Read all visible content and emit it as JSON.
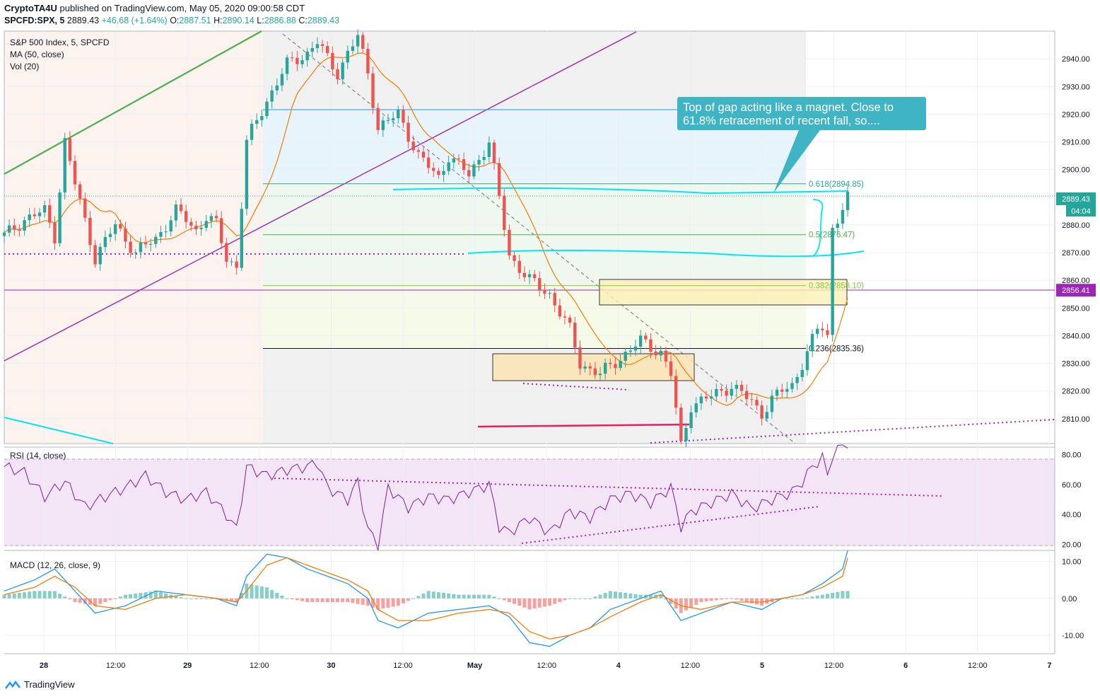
{
  "header": {
    "publisher": "CryptoTA4U",
    "published_text": "published on TradingView.com, May 05, 2020 09:00:58 CDT",
    "symbol": "SPCFD:SPX, 5",
    "last": "2889.43",
    "change": "+46.68 (+1.64%)",
    "o_label": "O:",
    "o": "2887.51",
    "h_label": "H:",
    "h": "2890.14",
    "l_label": "L:",
    "l": "2886.88",
    "c_label": "C:",
    "c": "2889.43"
  },
  "legend": {
    "title": "S&P 500 Index, 5, SPCFD",
    "ma": "MA (50, close)",
    "vol": "Vol (20)",
    "rsi": "RSI (14, close)",
    "macd": "MACD (12, 26, close, 9)"
  },
  "annotation": {
    "callout": "Top of gap acting like a magnet. Close to 61.8% retracement of recent fall, so...."
  },
  "footer": {
    "brand": "TradingView"
  },
  "colors": {
    "up": "#26a69a",
    "down": "#ef5350",
    "ma": "#f57c00",
    "rsi": "#7b1fa2",
    "macd": "#2196f3",
    "signal": "#f57c00",
    "fib_teal": "#26a69a",
    "callout": "#3fb5c4",
    "purple_level": "#9c27b0",
    "cyan": "#00e5ff",
    "magenta": "#e91e63"
  },
  "chart_data": [
    {
      "type": "candlestick",
      "title": "S&P 500 Index, 5, SPCFD",
      "y_axis_ticks": [
        "2940.00",
        "2930.00",
        "2920.00",
        "2910.00",
        "2900.00",
        "2890.00",
        "2880.00",
        "2870.00",
        "2860.00",
        "2850.00",
        "2840.00",
        "2830.00",
        "2820.00",
        "2810.00"
      ],
      "ylim": [
        2801,
        2950
      ],
      "x_axis_ticks": [
        "28",
        "12:00",
        "29",
        "12:00",
        "30",
        "12:00",
        "May",
        "12:00",
        "4",
        "12:00",
        "5",
        "12:00",
        "6",
        "12:00",
        "7"
      ],
      "last_price_label": "2889.43",
      "countdown_label": "04:04",
      "level_label": "2856.41",
      "fib_levels": [
        {
          "label": "0.618(2894.85)",
          "value": 2894.85
        },
        {
          "label": "0.5(2876.47)",
          "value": 2876.47
        },
        {
          "label": "0.382(2858.10)",
          "value": 2858.1
        },
        {
          "label": "0.236(2835.36)",
          "value": 2835.36
        }
      ],
      "price_path": [
        [
          0,
          2876
        ],
        [
          4,
          2882
        ],
        [
          8,
          2885
        ],
        [
          10,
          2876
        ],
        [
          12,
          2910
        ],
        [
          14,
          2895
        ],
        [
          18,
          2868
        ],
        [
          22,
          2880
        ],
        [
          26,
          2870
        ],
        [
          30,
          2875
        ],
        [
          34,
          2885
        ],
        [
          36,
          2882
        ],
        [
          38,
          2878
        ],
        [
          40,
          2883
        ],
        [
          42,
          2880
        ],
        [
          44,
          2868
        ],
        [
          46,
          2865
        ],
        [
          48,
          2910
        ],
        [
          52,
          2925
        ],
        [
          56,
          2938
        ],
        [
          60,
          2942
        ],
        [
          62,
          2946
        ],
        [
          64,
          2940
        ],
        [
          66,
          2935
        ],
        [
          68,
          2942
        ],
        [
          70,
          2948
        ],
        [
          72,
          2935
        ],
        [
          74,
          2915
        ],
        [
          78,
          2920
        ],
        [
          82,
          2905
        ],
        [
          86,
          2897
        ],
        [
          88,
          2905
        ],
        [
          92,
          2898
        ],
        [
          96,
          2910
        ],
        [
          100,
          2869
        ],
        [
          104,
          2860
        ],
        [
          108,
          2855
        ],
        [
          112,
          2842
        ],
        [
          114,
          2830
        ],
        [
          118,
          2826
        ],
        [
          122,
          2832
        ],
        [
          126,
          2838
        ],
        [
          130,
          2834
        ],
        [
          132,
          2826
        ],
        [
          134,
          2800
        ],
        [
          136,
          2815
        ],
        [
          140,
          2818
        ],
        [
          144,
          2822
        ],
        [
          148,
          2816
        ],
        [
          150,
          2812
        ],
        [
          152,
          2817
        ],
        [
          154,
          2820
        ],
        [
          156,
          2822
        ],
        [
          158,
          2830
        ],
        [
          160,
          2838
        ],
        [
          161,
          2842
        ],
        [
          162,
          2843
        ],
        [
          163,
          2840
        ],
        [
          164,
          2879
        ],
        [
          166,
          2886
        ],
        [
          167,
          2889.43
        ]
      ],
      "x_range": [
        0,
        208
      ]
    },
    {
      "type": "line",
      "title": "RSI (14, close)",
      "y_axis_ticks": [
        "80.00",
        "60.00",
        "40.00",
        "20.00"
      ],
      "ylim": [
        16,
        85
      ],
      "series": [
        {
          "values_path": [
            [
              0,
              72
            ],
            [
              4,
              68
            ],
            [
              8,
              52
            ],
            [
              12,
              62
            ],
            [
              16,
              45
            ],
            [
              20,
              52
            ],
            [
              24,
              58
            ],
            [
              28,
              66
            ],
            [
              32,
              55
            ],
            [
              36,
              50
            ],
            [
              40,
              55
            ],
            [
              44,
              40
            ],
            [
              46,
              30
            ],
            [
              48,
              72
            ],
            [
              52,
              66
            ],
            [
              56,
              70
            ],
            [
              60,
              72
            ],
            [
              62,
              75
            ],
            [
              64,
              58
            ],
            [
              68,
              50
            ],
            [
              70,
              62
            ],
            [
              72,
              30
            ],
            [
              74,
              20
            ],
            [
              76,
              58
            ],
            [
              80,
              45
            ],
            [
              84,
              52
            ],
            [
              88,
              50
            ],
            [
              92,
              55
            ],
            [
              96,
              60
            ],
            [
              98,
              32
            ],
            [
              100,
              28
            ],
            [
              104,
              38
            ],
            [
              108,
              28
            ],
            [
              112,
              42
            ],
            [
              116,
              38
            ],
            [
              120,
              50
            ],
            [
              124,
              54
            ],
            [
              128,
              48
            ],
            [
              132,
              58
            ],
            [
              134,
              32
            ],
            [
              136,
              42
            ],
            [
              140,
              48
            ],
            [
              144,
              54
            ],
            [
              148,
              44
            ],
            [
              152,
              50
            ],
            [
              156,
              55
            ],
            [
              158,
              62
            ],
            [
              160,
              72
            ],
            [
              162,
              78
            ],
            [
              163,
              66
            ],
            [
              164,
              80
            ],
            [
              166,
              86
            ],
            [
              167,
              88
            ]
          ]
        }
      ]
    },
    {
      "type": "line",
      "title": "MACD (12, 26, close, 9)",
      "y_axis_ticks": [
        "10.00",
        "0.00",
        "-10.00"
      ],
      "ylim": [
        -15,
        13
      ],
      "series": [
        {
          "name": "MACD",
          "values_path": [
            [
              0,
              2
            ],
            [
              6,
              5
            ],
            [
              10,
              8
            ],
            [
              14,
              2
            ],
            [
              18,
              -4
            ],
            [
              24,
              -2
            ],
            [
              30,
              2
            ],
            [
              36,
              1
            ],
            [
              42,
              0
            ],
            [
              46,
              -2
            ],
            [
              48,
              6
            ],
            [
              52,
              12
            ],
            [
              56,
              11
            ],
            [
              60,
              8
            ],
            [
              64,
              6
            ],
            [
              68,
              4
            ],
            [
              72,
              0
            ],
            [
              74,
              -6
            ],
            [
              78,
              -8
            ],
            [
              84,
              -4
            ],
            [
              90,
              -3
            ],
            [
              96,
              -2
            ],
            [
              100,
              -5
            ],
            [
              104,
              -12
            ],
            [
              108,
              -13
            ],
            [
              112,
              -10
            ],
            [
              116,
              -8
            ],
            [
              120,
              -3
            ],
            [
              126,
              0
            ],
            [
              130,
              2
            ],
            [
              134,
              -6
            ],
            [
              138,
              -4
            ],
            [
              144,
              -1
            ],
            [
              150,
              -3
            ],
            [
              154,
              0
            ],
            [
              158,
              1
            ],
            [
              162,
              4
            ],
            [
              166,
              8
            ],
            [
              167,
              13
            ]
          ]
        },
        {
          "name": "Signal",
          "values_path": [
            [
              0,
              1
            ],
            [
              6,
              3
            ],
            [
              10,
              6
            ],
            [
              14,
              3
            ],
            [
              18,
              -2
            ],
            [
              24,
              -3
            ],
            [
              30,
              0
            ],
            [
              36,
              1
            ],
            [
              42,
              0
            ],
            [
              46,
              -1
            ],
            [
              48,
              2
            ],
            [
              52,
              9
            ],
            [
              56,
              11
            ],
            [
              60,
              9
            ],
            [
              64,
              7
            ],
            [
              68,
              5
            ],
            [
              72,
              2
            ],
            [
              74,
              -3
            ],
            [
              78,
              -6
            ],
            [
              84,
              -6
            ],
            [
              90,
              -4
            ],
            [
              96,
              -3
            ],
            [
              100,
              -4
            ],
            [
              104,
              -9
            ],
            [
              108,
              -11
            ],
            [
              112,
              -10
            ],
            [
              116,
              -8
            ],
            [
              120,
              -5
            ],
            [
              126,
              -1
            ],
            [
              130,
              1
            ],
            [
              134,
              -2
            ],
            [
              138,
              -3
            ],
            [
              144,
              -1
            ],
            [
              150,
              -1
            ],
            [
              154,
              0
            ],
            [
              158,
              1
            ],
            [
              162,
              3
            ],
            [
              166,
              6
            ],
            [
              167,
              11
            ]
          ]
        }
      ]
    }
  ]
}
